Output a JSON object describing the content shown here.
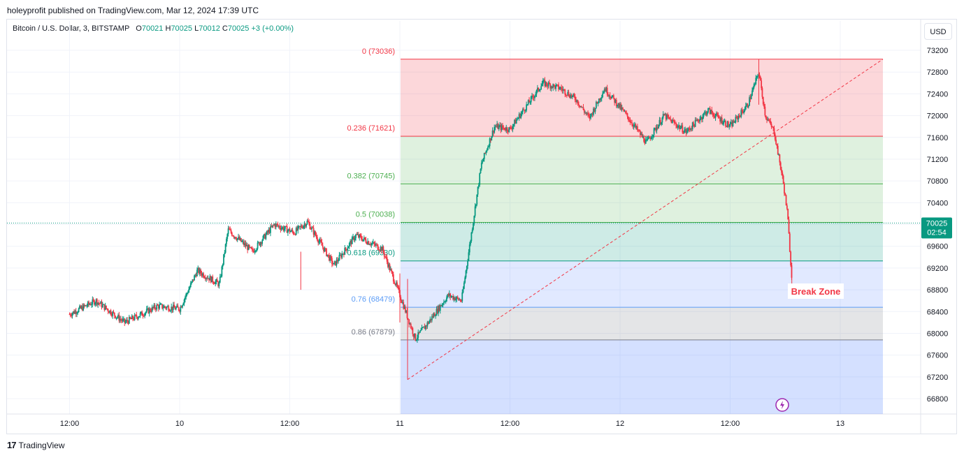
{
  "header": {
    "published_by": "holeyprofit published on TradingView.com, Mar 12, 2024 17:39 UTC"
  },
  "legend": {
    "symbol": "Bitcoin / U.S. Dollar, 3, BITSTAMP",
    "o_label": "O",
    "o_value": "70021",
    "h_label": "H",
    "h_value": "70025",
    "l_label": "L",
    "l_value": "70012",
    "c_label": "C",
    "c_value": "70025",
    "change": "+3 (+0.00%)"
  },
  "currency_button": "USD",
  "footer": {
    "brand": "TradingView",
    "logo": "17"
  },
  "colors": {
    "up": "#089981",
    "down": "#f23645",
    "fib_red": "#f23645",
    "fib_green": "#4caf50",
    "fib_teal": "#089981",
    "fib_blue": "#2962ff",
    "fib_grey": "#787b86",
    "price_label": "#089981"
  },
  "chart_data": {
    "type": "candlestick",
    "symbol": "BTCUSD",
    "interval": "3",
    "y_range": [
      66500,
      73500
    ],
    "y_ticks": [
      66800,
      67200,
      67600,
      68000,
      68400,
      68800,
      69200,
      69600,
      70000,
      70400,
      70800,
      71200,
      71600,
      72000,
      72400,
      72800,
      73200
    ],
    "x_ticks": [
      "12:00",
      "10",
      "12:00",
      "11",
      "12:00",
      "12",
      "12:00",
      "13"
    ],
    "last_price": {
      "value": "70025",
      "countdown": "02:54"
    },
    "fib_levels": [
      {
        "label": "0 (73036)",
        "ratio": 0,
        "price": 73036
      },
      {
        "label": "0.236 (71621)",
        "ratio": 0.236,
        "price": 71621
      },
      {
        "label": "0.382 (70745)",
        "ratio": 0.382,
        "price": 70745
      },
      {
        "label": "0.5 (70038)",
        "ratio": 0.5,
        "price": 70038
      },
      {
        "label": "0.618 (69330)",
        "ratio": 0.618,
        "price": 69330
      },
      {
        "label": "0.76 (68479)",
        "ratio": 0.76,
        "price": 68479
      },
      {
        "label": "0.86 (67879)",
        "ratio": 0.86,
        "price": 67879
      }
    ],
    "fib_low": 67150,
    "price_path": [
      [
        9.5,
        68350
      ],
      [
        9.62,
        68600
      ],
      [
        9.75,
        68200
      ],
      [
        9.9,
        68500
      ],
      [
        10.0,
        68450
      ],
      [
        10.08,
        69150
      ],
      [
        10.18,
        68900
      ],
      [
        10.22,
        69900
      ],
      [
        10.33,
        69500
      ],
      [
        10.43,
        70000
      ],
      [
        10.52,
        69850
      ],
      [
        10.58,
        70050
      ],
      [
        10.7,
        69250
      ],
      [
        10.8,
        69800
      ],
      [
        10.92,
        69550
      ],
      [
        11.0,
        68700
      ],
      [
        11.07,
        67900
      ],
      [
        11.12,
        68150
      ],
      [
        11.22,
        68700
      ],
      [
        11.28,
        68600
      ],
      [
        11.32,
        69700
      ],
      [
        11.37,
        71100
      ],
      [
        11.43,
        71800
      ],
      [
        11.5,
        71750
      ],
      [
        11.57,
        72150
      ],
      [
        11.65,
        72600
      ],
      [
        11.73,
        72500
      ],
      [
        11.8,
        72300
      ],
      [
        11.86,
        71950
      ],
      [
        11.93,
        72500
      ],
      [
        12.03,
        72000
      ],
      [
        12.12,
        71500
      ],
      [
        12.2,
        72000
      ],
      [
        12.3,
        71700
      ],
      [
        12.4,
        72100
      ],
      [
        12.5,
        71800
      ],
      [
        12.58,
        72200
      ],
      [
        12.63,
        72800
      ],
      [
        12.66,
        72000
      ],
      [
        12.7,
        71700
      ],
      [
        12.74,
        70800
      ],
      [
        12.76,
        70200
      ],
      [
        12.78,
        69000
      ]
    ],
    "annotation": "Break Zone",
    "lightning_icon": "lightning-icon"
  }
}
